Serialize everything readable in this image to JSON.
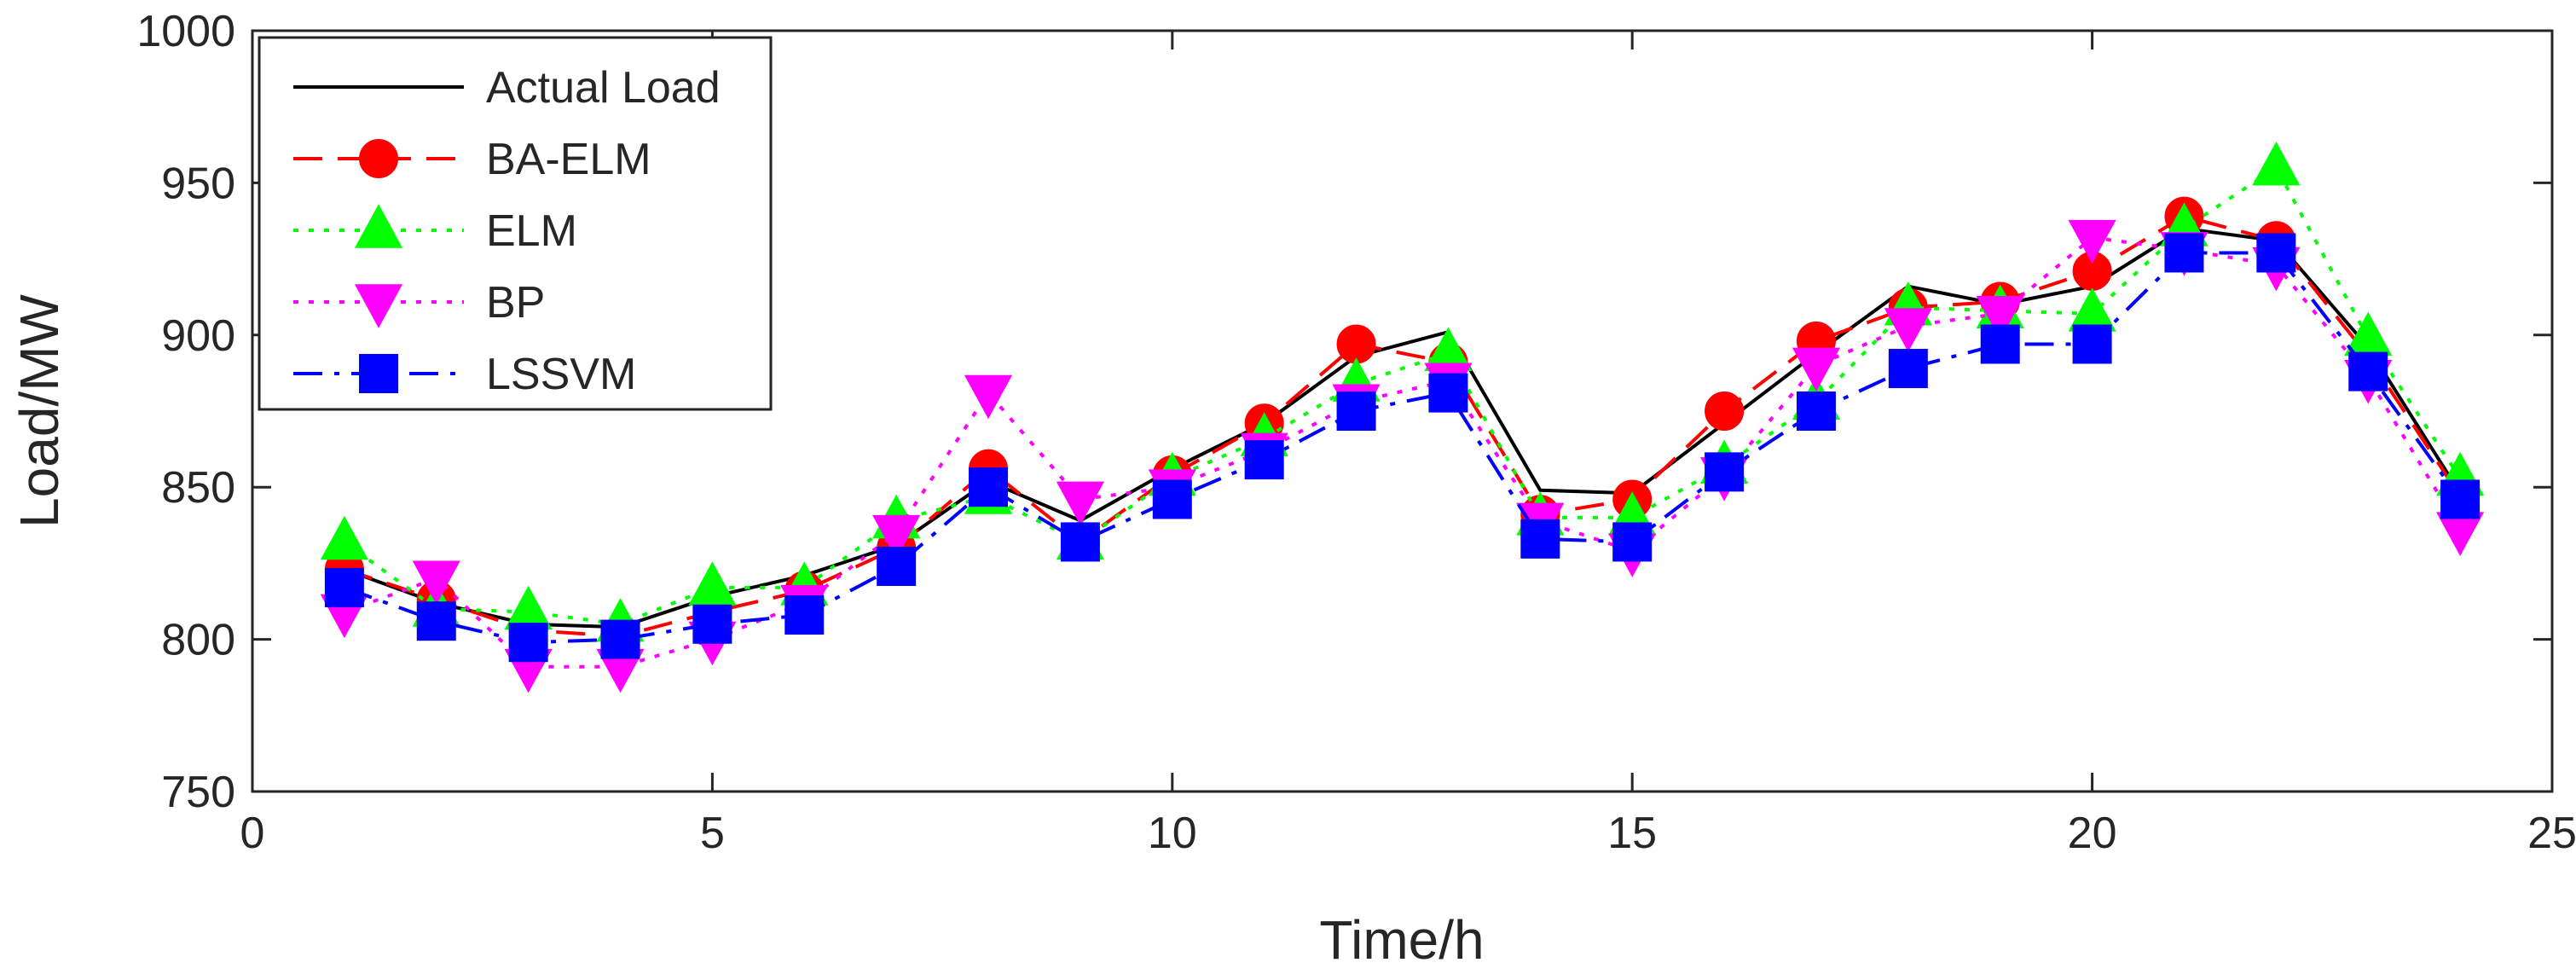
{
  "chart_data": {
    "type": "line",
    "title": "",
    "xlabel": "Time/h",
    "ylabel": "Load/MW",
    "xlim": [
      0,
      25
    ],
    "ylim": [
      750,
      1000
    ],
    "xticks": [
      0,
      5,
      10,
      15,
      20,
      25
    ],
    "yticks": [
      750,
      800,
      850,
      900,
      950,
      1000
    ],
    "grid": false,
    "legend_position": "top-left",
    "x": [
      1,
      2,
      3,
      4,
      5,
      6,
      7,
      8,
      9,
      10,
      11,
      12,
      13,
      14,
      15,
      16,
      17,
      18,
      19,
      20,
      21,
      22,
      23,
      24
    ],
    "series": [
      {
        "name": "Actual Load",
        "color": "#000000",
        "dash": "solid",
        "marker": "none",
        "values": [
          823,
          812,
          805,
          804,
          814,
          821,
          831,
          852,
          839,
          856,
          871,
          893,
          901,
          849,
          848,
          871,
          894,
          916,
          910,
          916,
          935,
          931,
          896,
          848
        ]
      },
      {
        "name": "BA-ELM",
        "color": "#ff0000",
        "dash": "dashed",
        "marker": "circle",
        "values": [
          823,
          813,
          803,
          801,
          809,
          816,
          830,
          856,
          832,
          854,
          871,
          897,
          891,
          841,
          846,
          875,
          898,
          909,
          911,
          921,
          939,
          931,
          893,
          847
        ]
      },
      {
        "name": "ELM",
        "color": "#00ff00",
        "dash": "dotted",
        "marker": "triangle-up",
        "values": [
          832,
          810,
          809,
          805,
          817,
          817,
          839,
          847,
          832,
          853,
          866,
          884,
          894,
          840,
          840,
          857,
          878,
          909,
          908,
          907,
          935,
          955,
          899,
          853
        ]
      },
      {
        "name": "BP",
        "color": "#ff00ff",
        "dash": "dotted",
        "marker": "triangle-down",
        "values": [
          809,
          820,
          791,
          791,
          800,
          812,
          835,
          881,
          846,
          850,
          862,
          878,
          885,
          839,
          829,
          854,
          890,
          903,
          907,
          932,
          928,
          923,
          886,
          836
        ]
      },
      {
        "name": "LSSVM",
        "color": "#0000ff",
        "dash": "dashdot",
        "marker": "square",
        "values": [
          817,
          806,
          799,
          800,
          805,
          808,
          824,
          850,
          832,
          846,
          859,
          875,
          881,
          833,
          832,
          855,
          875,
          889,
          897,
          897,
          927,
          927,
          888,
          846
        ]
      }
    ]
  }
}
